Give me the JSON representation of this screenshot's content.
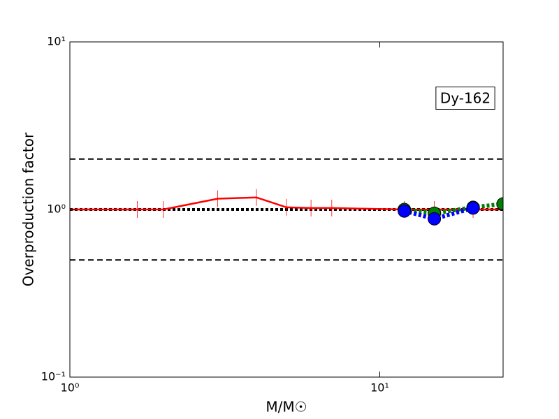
{
  "chart_data": {
    "type": "line",
    "xlabel": "M/M☉",
    "ylabel": "Overproduction factor",
    "log_x": true,
    "log_y": true,
    "xlim": [
      1,
      25
    ],
    "ylim": [
      0.1,
      10
    ],
    "xticks": [
      {
        "value": 1,
        "label": "10⁰"
      },
      {
        "value": 10,
        "label": "10¹"
      }
    ],
    "yticks": [
      {
        "value": 0.1,
        "label": "10⁻¹"
      },
      {
        "value": 1,
        "label": "10⁰"
      },
      {
        "value": 10,
        "label": "10¹"
      }
    ],
    "reference_lines": [
      {
        "value": 2,
        "style": "dashed",
        "color": "#000000"
      },
      {
        "value": 0.5,
        "style": "dashed",
        "color": "#000000"
      },
      {
        "value": 1,
        "style": "dotted",
        "color": "#000000"
      }
    ],
    "annotation": "Dy-162",
    "series": [
      {
        "color": "#ff0000",
        "style": "solid",
        "marker": "vline",
        "x": [
          1,
          1.65,
          2,
          3,
          4,
          5,
          6,
          7,
          12,
          15,
          20,
          25
        ],
        "values": [
          1,
          1,
          1,
          1.16,
          1.18,
          1.03,
          1.02,
          1.02,
          1,
          1,
          1,
          1
        ]
      },
      {
        "color": "#008000",
        "style": "dotted",
        "marker": "circle",
        "x": [
          12,
          15,
          20,
          25
        ],
        "values": [
          1.0,
          0.95,
          1.03,
          1.08
        ]
      },
      {
        "color": "#0000ff",
        "style": "dotted",
        "marker": "circle",
        "x": [
          12,
          15,
          20
        ],
        "values": [
          0.98,
          0.88,
          1.02
        ]
      }
    ]
  }
}
